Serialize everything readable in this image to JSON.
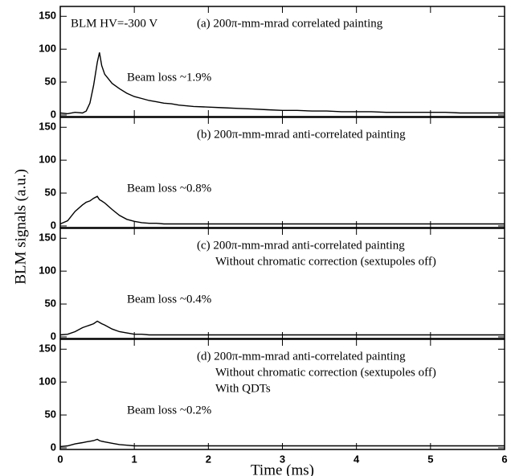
{
  "ylabel": "BLM signals (a.u.)",
  "chart_data": [
    {
      "type": "line",
      "hv_label": "BLM HV=-300 V",
      "labels": [
        "(a) 200π-mm-mrad correlated painting"
      ],
      "note": "Beam loss ~1.9%",
      "xlim": [
        0,
        6
      ],
      "ylim": [
        0,
        165
      ],
      "yticks": [
        0,
        50,
        100,
        150
      ],
      "x": [
        0,
        0.1,
        0.2,
        0.3,
        0.35,
        0.4,
        0.45,
        0.5,
        0.53,
        0.56,
        0.6,
        0.7,
        0.8,
        0.9,
        1,
        1.1,
        1.2,
        1.3,
        1.4,
        1.5,
        1.6,
        1.8,
        2,
        2.2,
        2.4,
        2.6,
        2.8,
        3,
        3.2,
        3.4,
        3.6,
        3.8,
        4,
        4.2,
        4.4,
        4.6,
        4.8,
        5,
        5.2,
        5.4,
        5.6,
        5.8,
        6
      ],
      "series": [
        {
          "color": "#000000",
          "values": [
            3,
            2,
            4,
            3,
            6,
            18,
            45,
            80,
            95,
            75,
            62,
            48,
            40,
            33,
            28,
            25,
            22,
            20,
            18,
            17,
            15,
            13,
            12,
            11,
            10,
            9,
            8,
            7,
            7,
            6,
            6,
            5,
            5,
            5,
            4,
            4,
            4,
            4,
            4,
            3,
            3,
            3,
            3
          ]
        }
      ]
    },
    {
      "type": "line",
      "labels": [
        "(b) 200π-mm-mrad anti-correlated painting"
      ],
      "note": "Beam loss ~0.8%",
      "xlim": [
        0,
        6
      ],
      "ylim": [
        0,
        165
      ],
      "yticks": [
        0,
        50,
        100,
        150
      ],
      "x": [
        0,
        0.1,
        0.2,
        0.3,
        0.35,
        0.4,
        0.45,
        0.5,
        0.53,
        0.56,
        0.6,
        0.7,
        0.8,
        0.9,
        1,
        1.1,
        1.2,
        1.3,
        1.4,
        1.5,
        1.6,
        1.8,
        2,
        2.2,
        2.4,
        2.6,
        2.8,
        3,
        3.2,
        3.4,
        3.6,
        3.8,
        4,
        4.2,
        4.4,
        4.6,
        4.8,
        5,
        5.2,
        5.4,
        5.6,
        5.8,
        6
      ],
      "series": [
        {
          "color": "#000000",
          "values": [
            3,
            8,
            22,
            32,
            36,
            38,
            42,
            45,
            40,
            38,
            35,
            25,
            16,
            10,
            7,
            5,
            4,
            4,
            3,
            3,
            3,
            3,
            3,
            3,
            3,
            3,
            3,
            3,
            3,
            3,
            3,
            3,
            3,
            3,
            3,
            3,
            3,
            3,
            3,
            3,
            3,
            3,
            3
          ]
        }
      ]
    },
    {
      "type": "line",
      "labels": [
        "(c) 200π-mm-mrad anti-correlated painting",
        "Without chromatic correction (sextupoles off)"
      ],
      "note": "Beam loss ~0.4%",
      "xlim": [
        0,
        6
      ],
      "ylim": [
        0,
        165
      ],
      "yticks": [
        0,
        50,
        100,
        150
      ],
      "x": [
        0,
        0.1,
        0.2,
        0.3,
        0.35,
        0.4,
        0.45,
        0.5,
        0.53,
        0.56,
        0.6,
        0.7,
        0.8,
        0.9,
        1,
        1.1,
        1.2,
        1.3,
        1.4,
        1.5,
        1.6,
        1.8,
        2,
        2.2,
        2.4,
        2.6,
        2.8,
        3,
        3.2,
        3.4,
        3.6,
        3.8,
        4,
        4.2,
        4.4,
        4.6,
        4.8,
        5,
        5.2,
        5.4,
        5.6,
        5.8,
        6
      ],
      "series": [
        {
          "color": "#000000",
          "values": [
            3,
            4,
            8,
            14,
            16,
            18,
            20,
            24,
            22,
            20,
            18,
            12,
            8,
            6,
            4,
            4,
            3,
            3,
            3,
            3,
            3,
            3,
            3,
            3,
            3,
            3,
            3,
            3,
            3,
            3,
            3,
            3,
            3,
            3,
            3,
            3,
            3,
            3,
            3,
            3,
            3,
            3,
            3
          ]
        }
      ]
    },
    {
      "type": "line",
      "labels": [
        "(d) 200π-mm-mrad anti-correlated painting",
        "Without chromatic correction (sextupoles off)",
        "With QDTs"
      ],
      "note": "Beam loss ~0.2%",
      "xlabel": "Time (ms)",
      "xlim": [
        0,
        6
      ],
      "xticks": [
        0,
        1,
        2,
        3,
        4,
        5,
        6
      ],
      "ylim": [
        0,
        165
      ],
      "yticks": [
        0,
        50,
        100,
        150
      ],
      "x": [
        0,
        0.1,
        0.2,
        0.3,
        0.35,
        0.4,
        0.45,
        0.5,
        0.53,
        0.56,
        0.6,
        0.7,
        0.8,
        0.9,
        1,
        1.1,
        1.2,
        1.3,
        1.4,
        1.5,
        1.6,
        1.8,
        2,
        2.2,
        2.4,
        2.6,
        2.8,
        3,
        3.2,
        3.4,
        3.6,
        3.8,
        4,
        4.2,
        4.4,
        4.6,
        4.8,
        5,
        5.2,
        5.4,
        5.6,
        5.8,
        6
      ],
      "series": [
        {
          "color": "#000000",
          "values": [
            2,
            3,
            6,
            8,
            9,
            10,
            11,
            13,
            11,
            10,
            9,
            7,
            5,
            4,
            3,
            3,
            3,
            3,
            3,
            3,
            3,
            3,
            3,
            3,
            3,
            3,
            3,
            3,
            3,
            3,
            3,
            3,
            3,
            3,
            3,
            3,
            3,
            3,
            3,
            3,
            3,
            3,
            3
          ]
        }
      ]
    }
  ]
}
